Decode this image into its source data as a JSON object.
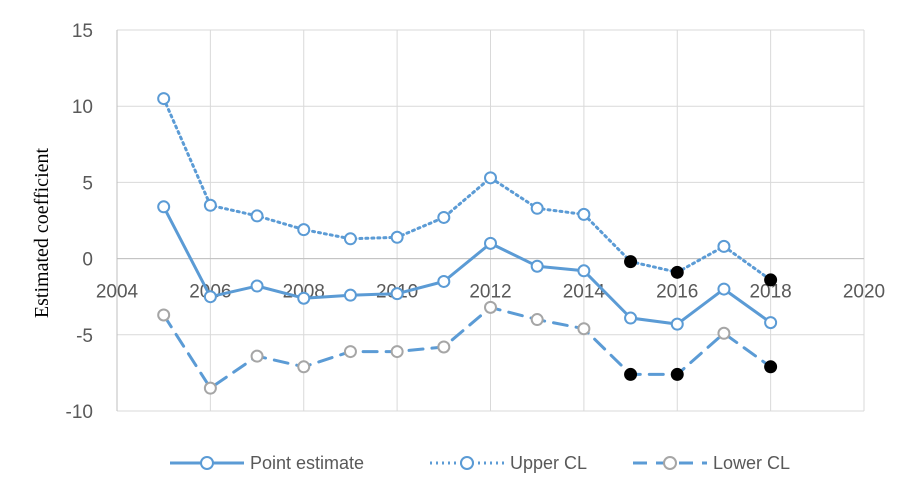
{
  "chart_data": {
    "type": "line",
    "title": "",
    "xlabel": "",
    "ylabel": "Estimated coefficient",
    "xlim": [
      2004,
      2020
    ],
    "ylim": [
      -10,
      15
    ],
    "x_ticks": [
      "2004",
      "2006",
      "2008",
      "2010",
      "2012",
      "2014",
      "2016",
      "2018",
      "2020"
    ],
    "y_ticks": [
      "15",
      "10",
      "5",
      "0",
      "-5",
      "-10"
    ],
    "grid": true,
    "legend_position": "bottom",
    "x": [
      2005,
      2006,
      2007,
      2008,
      2009,
      2010,
      2011,
      2012,
      2013,
      2014,
      2015,
      2016,
      2017,
      2018
    ],
    "series": [
      {
        "name": "Point estimate",
        "style": "solid",
        "values": [
          3.4,
          -2.5,
          -1.8,
          -2.6,
          -2.4,
          -2.3,
          -1.5,
          1.0,
          -0.5,
          -0.8,
          -3.9,
          -4.3,
          -2.0,
          -4.2
        ],
        "filled": [
          false,
          false,
          false,
          false,
          false,
          false,
          false,
          false,
          false,
          false,
          false,
          false,
          false,
          false
        ]
      },
      {
        "name": "Upper CL",
        "style": "dotted",
        "values": [
          10.5,
          3.5,
          2.8,
          1.9,
          1.3,
          1.4,
          2.7,
          5.3,
          3.3,
          2.9,
          -0.2,
          -0.9,
          0.8,
          -1.4
        ],
        "filled": [
          false,
          false,
          false,
          false,
          false,
          false,
          false,
          false,
          false,
          false,
          true,
          true,
          false,
          true
        ]
      },
      {
        "name": "Lower CL",
        "style": "dashed",
        "values": [
          -3.7,
          -8.5,
          -6.4,
          -7.1,
          -6.1,
          -6.1,
          -5.8,
          -3.2,
          -4.0,
          -4.6,
          -7.6,
          -7.6,
          -4.9,
          -7.1
        ],
        "filled": [
          false,
          false,
          false,
          false,
          false,
          false,
          false,
          false,
          false,
          false,
          true,
          true,
          false,
          true
        ]
      }
    ],
    "colors": {
      "Point estimate": "#5b9bd5",
      "Upper CL": "#5b9bd5",
      "Lower CL": "#5b9bd5",
      "Point estimate marker": "#5b9bd5",
      "Upper CL marker": "#5b9bd5",
      "Lower CL marker": "#a6a6a6",
      "filled_marker": "#000000",
      "grid": "#d9d9d9",
      "tick_text": "#595959"
    }
  }
}
